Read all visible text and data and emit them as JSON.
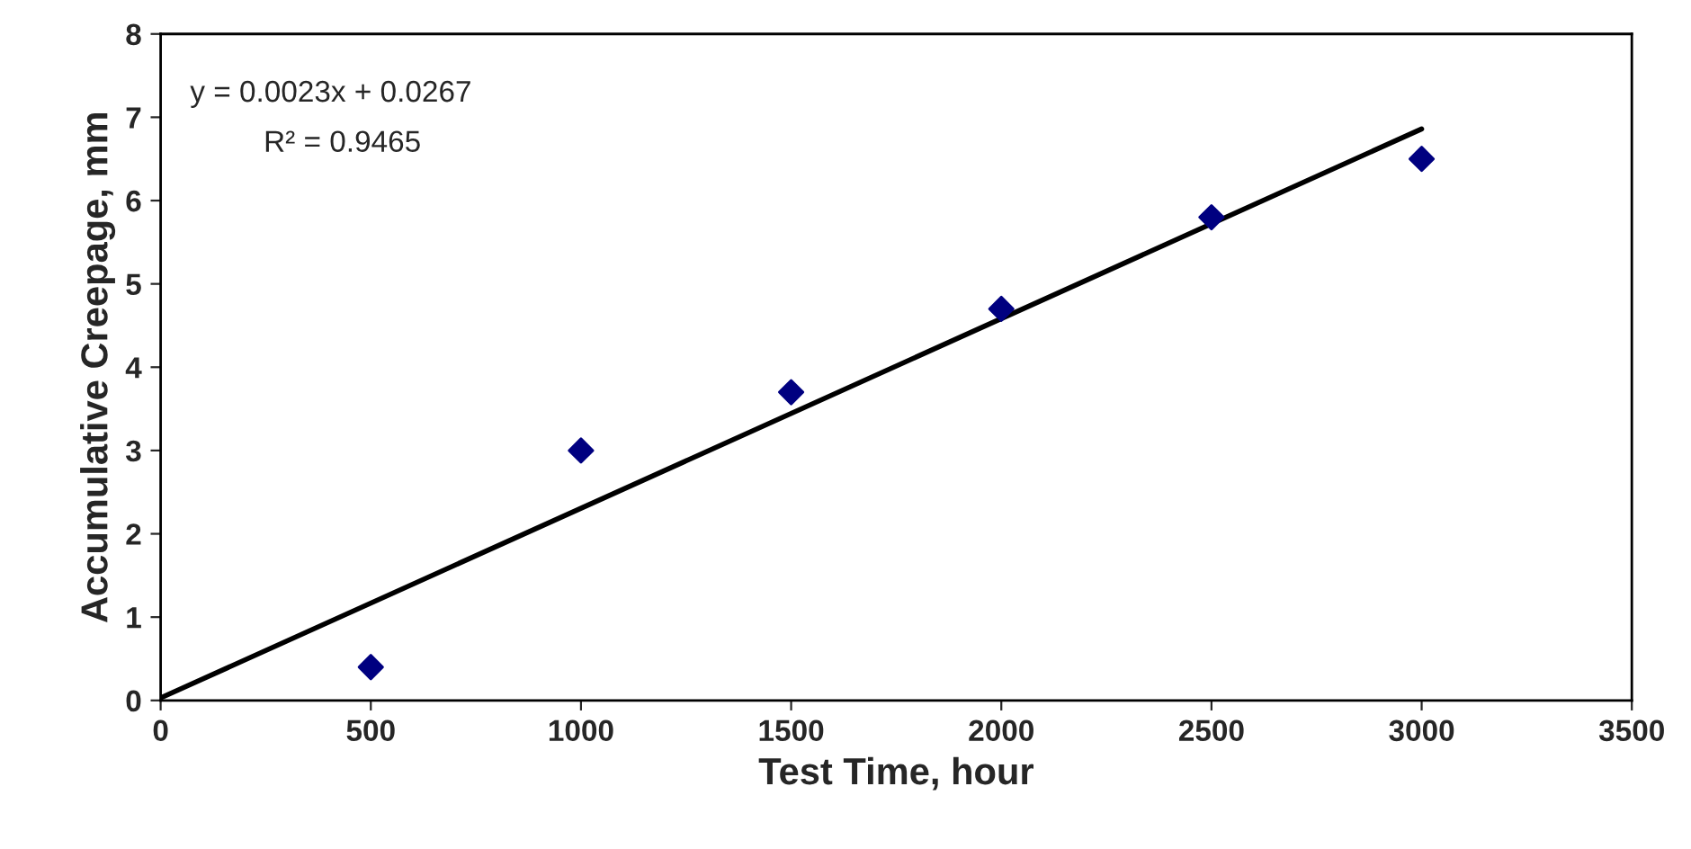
{
  "chart_data": {
    "type": "scatter",
    "xlabel": "Test Time, hour",
    "ylabel": "Accumulative Creepage, mm",
    "x": [
      500,
      1000,
      1500,
      2000,
      2500,
      3000
    ],
    "series": [
      {
        "color": "#000080",
        "marker": "diamond",
        "values": [
          0.4,
          3.0,
          3.7,
          4.7,
          5.8,
          6.5
        ]
      },
      {
        "type": "line",
        "color": "#000000",
        "marker": "none",
        "line_style": "solid",
        "x": [
          0,
          3000
        ],
        "values": [
          0.03,
          6.86
        ]
      }
    ],
    "annotations": [
      "y = 0.0023x + 0.0267",
      "R² = 0.9465"
    ],
    "xlim": [
      0,
      3500
    ],
    "xticks": [
      0,
      500,
      1000,
      1500,
      2000,
      2500,
      3000,
      3500
    ],
    "ylim": [
      0,
      8
    ],
    "yticks": [
      0,
      1,
      2,
      3,
      4,
      5,
      6,
      7,
      8
    ],
    "grid": false,
    "legend": false
  }
}
